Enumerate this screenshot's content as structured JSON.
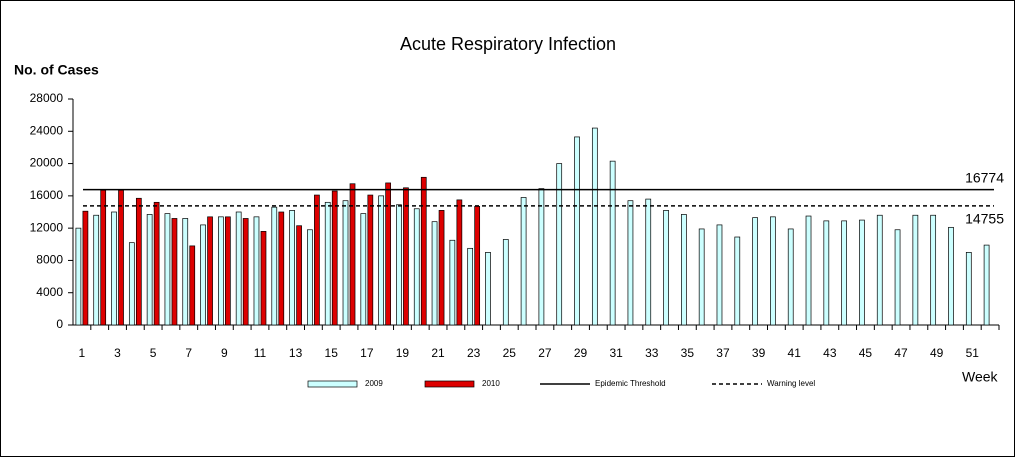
{
  "chart_data": {
    "type": "bar",
    "title": "Acute Respiratory Infection",
    "ylabel": "No. of Cases",
    "xlabel": "Week",
    "categories": [
      "1",
      null,
      "3",
      null,
      "5",
      null,
      "7",
      null,
      "9",
      null,
      "11",
      null,
      "13",
      null,
      "15",
      null,
      "17",
      null,
      "19",
      null,
      "21",
      null,
      "23",
      null,
      "25",
      null,
      "27",
      null,
      "29",
      null,
      "31",
      null,
      "33",
      null,
      "35",
      null,
      "37",
      null,
      "39",
      null,
      "41",
      null,
      "43",
      null,
      "45",
      null,
      "47",
      null,
      "49",
      null,
      "51",
      null
    ],
    "series": [
      {
        "name": "2009",
        "color": "#ccffff",
        "values": [
          12000,
          13600,
          14000,
          10200,
          13700,
          13800,
          13200,
          12400,
          13400,
          14000,
          13400,
          14600,
          14200,
          11800,
          15200,
          15400,
          13800,
          16000,
          14900,
          14400,
          12800,
          10500,
          9500,
          9000,
          10600,
          15800,
          16900,
          20000,
          23300,
          24400,
          20300,
          15400,
          15600,
          14200,
          13700,
          11900,
          12400,
          10900,
          13300,
          13400,
          11900,
          13500,
          12900,
          12900,
          13000,
          13600,
          11800,
          13600,
          13600,
          12100,
          9000,
          9900
        ]
      },
      {
        "name": "2010",
        "color": "#dd0000",
        "values": [
          14100,
          16700,
          16700,
          15700,
          15200,
          13200,
          9800,
          13400,
          13400,
          13200,
          11600,
          14000,
          12300,
          16100,
          16600,
          17500,
          16100,
          17600,
          17000,
          18300,
          14200,
          15500,
          14700,
          null,
          null,
          null,
          null,
          null,
          null,
          null,
          null,
          null,
          null,
          null,
          null,
          null,
          null,
          null,
          null,
          null,
          null,
          null,
          null,
          null,
          null,
          null,
          null,
          null,
          null,
          null,
          null,
          null
        ]
      }
    ],
    "thresholds": [
      {
        "name": "Epidemic Threshold",
        "value": 16774,
        "style": "solid"
      },
      {
        "name": "Warning level",
        "value": 14755,
        "style": "dashed"
      }
    ],
    "ylim": [
      0,
      28000
    ],
    "yticks": [
      0,
      4000,
      8000,
      12000,
      16000,
      20000,
      24000,
      28000
    ]
  }
}
